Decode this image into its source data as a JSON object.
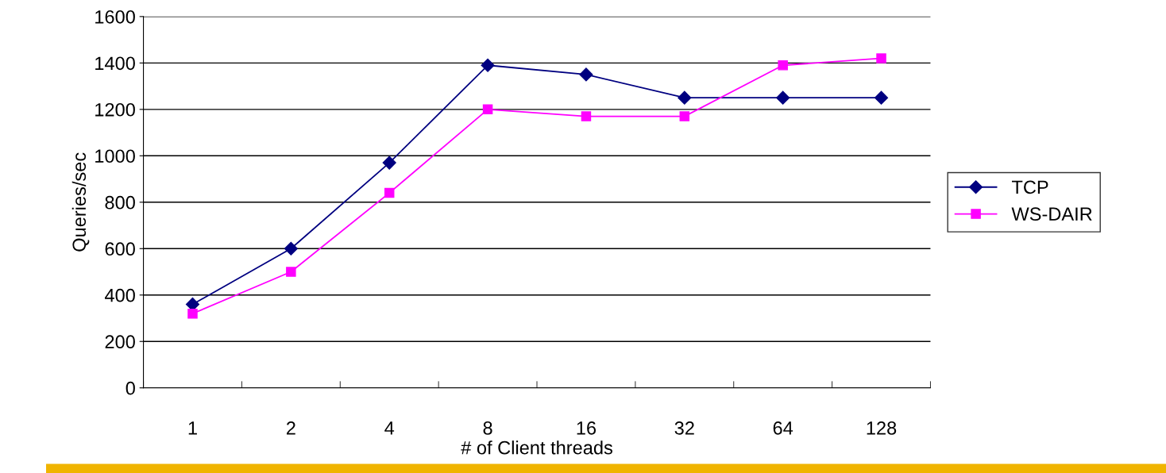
{
  "chart_data": {
    "type": "line",
    "xlabel": "# of Client threads",
    "ylabel": "Queries/sec",
    "categories": [
      "1",
      "2",
      "4",
      "8",
      "16",
      "32",
      "64",
      "128"
    ],
    "series": [
      {
        "name": "TCP",
        "color": "#000080",
        "marker": "diamond",
        "values": [
          360,
          600,
          970,
          1390,
          1350,
          1250,
          1250,
          1250
        ]
      },
      {
        "name": "WS-DAIR",
        "color": "#ff00ff",
        "marker": "square",
        "values": [
          320,
          500,
          840,
          1200,
          1170,
          1170,
          1390,
          1420
        ]
      }
    ],
    "ylim": [
      0,
      1600
    ],
    "yticks": [
      0,
      200,
      400,
      600,
      800,
      1000,
      1200,
      1400,
      1600
    ],
    "grid": "y",
    "legend": "right",
    "line_style": "solid"
  }
}
